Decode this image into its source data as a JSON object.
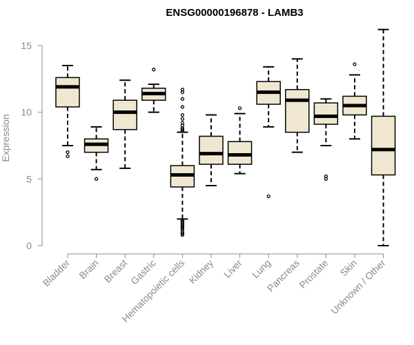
{
  "chart_data": {
    "type": "boxplot",
    "title": "ENSG00000196878 - LAMB3",
    "xlabel": "",
    "ylabel": "Expression",
    "ylim": [
      0,
      16
    ],
    "yticks": [
      0,
      5,
      10,
      15
    ],
    "grid": false,
    "box_color": "#efe7cf",
    "categories": [
      "Bladder",
      "Brain",
      "Breast",
      "Gastric",
      "Hematopoietic cells",
      "Kidney",
      "Liver",
      "Lung",
      "Pancreas",
      "Prostate",
      "Skin",
      "Unknown / Other"
    ],
    "boxes": [
      {
        "category": "Bladder",
        "min": 7.5,
        "q1": 10.4,
        "median": 11.9,
        "q3": 12.6,
        "max": 13.5,
        "outliers": [
          7.0,
          6.7
        ]
      },
      {
        "category": "Brain",
        "min": 5.7,
        "q1": 7.0,
        "median": 7.6,
        "q3": 8.0,
        "max": 8.9,
        "outliers": [
          5.0
        ]
      },
      {
        "category": "Breast",
        "min": 5.8,
        "q1": 8.7,
        "median": 10.0,
        "q3": 10.9,
        "max": 12.4,
        "outliers": []
      },
      {
        "category": "Gastric",
        "min": 10.0,
        "q1": 10.9,
        "median": 11.4,
        "q3": 11.8,
        "max": 12.1,
        "outliers": [
          13.2
        ]
      },
      {
        "category": "Hematopoietic cells",
        "min": 2.0,
        "q1": 4.4,
        "median": 5.3,
        "q3": 6.0,
        "max": 8.5,
        "outliers": [
          11.7,
          11.5,
          11.0,
          10.4,
          9.8,
          9.5,
          9.2,
          9.0,
          8.8,
          8.7,
          8.6,
          1.9,
          1.8,
          1.7,
          1.6,
          1.5,
          1.4,
          1.3,
          1.2,
          1.0,
          0.9,
          0.8
        ]
      },
      {
        "category": "Kidney",
        "min": 4.5,
        "q1": 6.1,
        "median": 6.9,
        "q3": 8.2,
        "max": 9.8,
        "outliers": []
      },
      {
        "category": "Liver",
        "min": 5.4,
        "q1": 6.1,
        "median": 6.8,
        "q3": 7.8,
        "max": 9.9,
        "outliers": [
          10.3
        ]
      },
      {
        "category": "Lung",
        "min": 8.9,
        "q1": 10.6,
        "median": 11.5,
        "q3": 12.3,
        "max": 13.4,
        "outliers": [
          3.7
        ]
      },
      {
        "category": "Pancreas",
        "min": 7.0,
        "q1": 8.5,
        "median": 10.9,
        "q3": 11.7,
        "max": 14.0,
        "outliers": []
      },
      {
        "category": "Prostate",
        "min": 7.5,
        "q1": 9.1,
        "median": 9.7,
        "q3": 10.7,
        "max": 11.0,
        "outliers": [
          5.2,
          5.0
        ]
      },
      {
        "category": "Skin",
        "min": 8.0,
        "q1": 9.8,
        "median": 10.5,
        "q3": 11.2,
        "max": 12.8,
        "outliers": [
          13.6
        ]
      },
      {
        "category": "Unknown / Other",
        "min": 0.0,
        "q1": 5.3,
        "median": 7.2,
        "q3": 9.7,
        "max": 16.2,
        "outliers": []
      }
    ]
  }
}
